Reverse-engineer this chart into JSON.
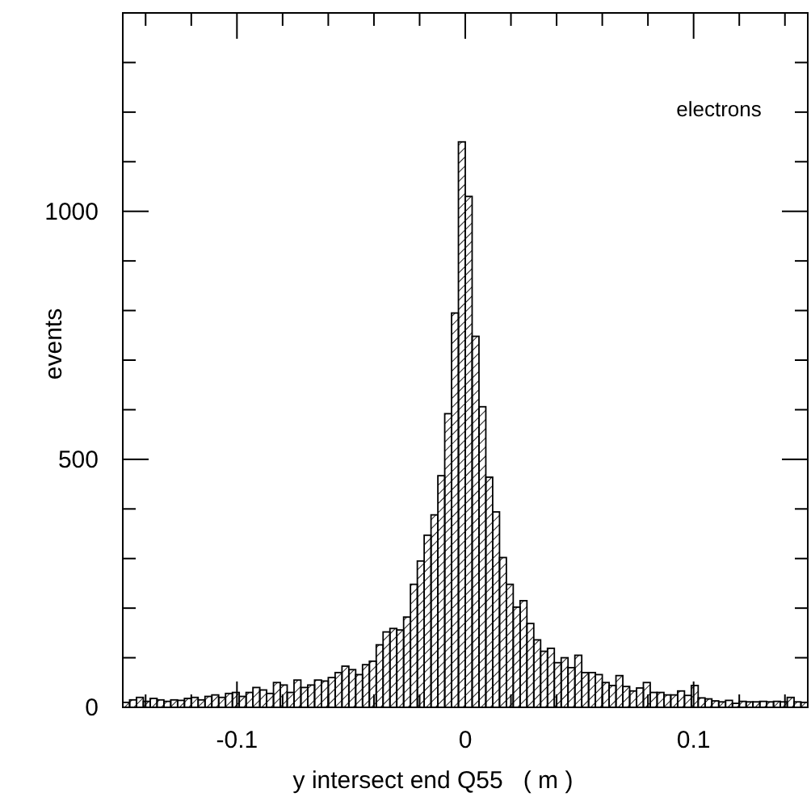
{
  "chart_data": {
    "type": "histogram",
    "xlabel": "y intersect end Q55   ( m )",
    "ylabel": "events",
    "annotations": [
      "electrons"
    ],
    "color": "#000000",
    "bins": [
      -0.15,
      -0.147,
      -0.144,
      -0.141,
      -0.138,
      -0.135,
      -0.132,
      -0.129,
      -0.126,
      -0.123,
      -0.12,
      -0.117,
      -0.114,
      -0.111,
      -0.108,
      -0.105,
      -0.102,
      -0.099,
      -0.096,
      -0.093,
      -0.09,
      -0.087,
      -0.084,
      -0.081,
      -0.078,
      -0.075,
      -0.072,
      -0.069,
      -0.066,
      -0.063,
      -0.06,
      -0.057,
      -0.054,
      -0.051,
      -0.048,
      -0.045,
      -0.042,
      -0.039,
      -0.036,
      -0.033,
      -0.03,
      -0.027,
      -0.024,
      -0.021,
      -0.018,
      -0.015,
      -0.012,
      -0.009,
      -0.006,
      -0.003,
      0,
      0.003,
      0.006,
      0.009,
      0.012,
      0.015,
      0.018,
      0.021,
      0.024,
      0.027,
      0.03,
      0.033,
      0.036,
      0.039,
      0.042,
      0.045,
      0.048,
      0.051,
      0.054,
      0.057,
      0.06,
      0.063,
      0.066,
      0.069,
      0.072,
      0.075,
      0.078,
      0.081,
      0.084,
      0.087,
      0.09,
      0.093,
      0.096,
      0.099,
      0.102,
      0.105,
      0.108,
      0.111,
      0.114,
      0.117,
      0.12,
      0.123,
      0.126,
      0.129,
      0.132,
      0.135,
      0.138,
      0.141,
      0.144,
      0.147,
      0.15
    ],
    "values": [
      10,
      15,
      20,
      12,
      18,
      15,
      12,
      15,
      14,
      18,
      20,
      15,
      22,
      25,
      20,
      28,
      30,
      22,
      30,
      40,
      35,
      28,
      50,
      45,
      30,
      55,
      40,
      45,
      55,
      53,
      60,
      70,
      83,
      76,
      66,
      86,
      93,
      126,
      152,
      159,
      156,
      182,
      248,
      295,
      347,
      388,
      467,
      592,
      795,
      1140,
      1030,
      748,
      606,
      464,
      394,
      302,
      248,
      202,
      215,
      169,
      136,
      113,
      119,
      90,
      100,
      80,
      105,
      70,
      70,
      66,
      50,
      44,
      64,
      42,
      33,
      39,
      50,
      30,
      30,
      25,
      25,
      33,
      24,
      44,
      19,
      17,
      13,
      11,
      14,
      8,
      12,
      11,
      11,
      12,
      11,
      12,
      11,
      20,
      11,
      10
    ],
    "xlim": [
      -0.15,
      0.15
    ],
    "ylim": [
      0,
      1400
    ],
    "xticks": [
      {
        "value": -0.14,
        "label": null
      },
      {
        "value": -0.12,
        "label": null
      },
      {
        "value": -0.1,
        "label": "-0.1"
      },
      {
        "value": -0.08,
        "label": null
      },
      {
        "value": -0.06,
        "label": null
      },
      {
        "value": -0.04,
        "label": null
      },
      {
        "value": -0.02,
        "label": null
      },
      0,
      {
        "value": 0.02,
        "label": null
      },
      {
        "value": 0.04,
        "label": null
      },
      {
        "value": 0.06,
        "label": null
      },
      {
        "value": 0.08,
        "label": null
      },
      {
        "value": 0.1,
        "label": "0.1"
      },
      {
        "value": 0.12,
        "label": null
      },
      {
        "value": 0.14,
        "label": null
      }
    ],
    "yticks": [
      0,
      {
        "value": 100,
        "label": null
      },
      {
        "value": 200,
        "label": null
      },
      {
        "value": 300,
        "label": null
      },
      {
        "value": 400,
        "label": null
      },
      500,
      {
        "value": 600,
        "label": null
      },
      {
        "value": 700,
        "label": null
      },
      {
        "value": 800,
        "label": null
      },
      {
        "value": 900,
        "label": null
      },
      1000,
      {
        "value": 1100,
        "label": null
      },
      {
        "value": 1200,
        "label": null
      },
      {
        "value": 1300,
        "label": null
      }
    ]
  }
}
